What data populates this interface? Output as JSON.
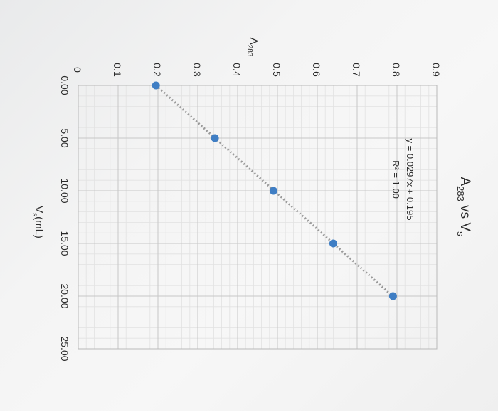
{
  "chart_data": {
    "type": "scatter",
    "title": {
      "main": "A",
      "sub": "283",
      "vs": " vs V",
      "vs_sub": "s"
    },
    "xlabel": {
      "main": "V",
      "sub": "s",
      "rest": "(mL)"
    },
    "ylabel": {
      "main": "A",
      "sub": "283"
    },
    "xlim": [
      0,
      25
    ],
    "ylim": [
      0,
      0.9
    ],
    "x_ticks": [
      "0.00",
      "5.00",
      "10.00",
      "15.00",
      "20.00",
      "25.00"
    ],
    "y_ticks": [
      "0",
      "0.1",
      "0.2",
      "0.3",
      "0.4",
      "0.5",
      "0.6",
      "0.7",
      "0.8",
      "0.9"
    ],
    "grid": true,
    "orientation": "rotated-90-clockwise",
    "series": [
      {
        "x": [
          0,
          5,
          10,
          15,
          20
        ],
        "y": [
          0.195,
          0.343,
          0.49,
          0.64,
          0.79
        ],
        "color": "#3f7ec4"
      }
    ],
    "trendline": {
      "type": "linear",
      "slope": 0.0297,
      "intercept": 0.195,
      "style": "dotted",
      "color": "#9a9a9a",
      "equation": "y = 0.0297x + 0.195",
      "r_squared": "R² = 1.00"
    }
  }
}
